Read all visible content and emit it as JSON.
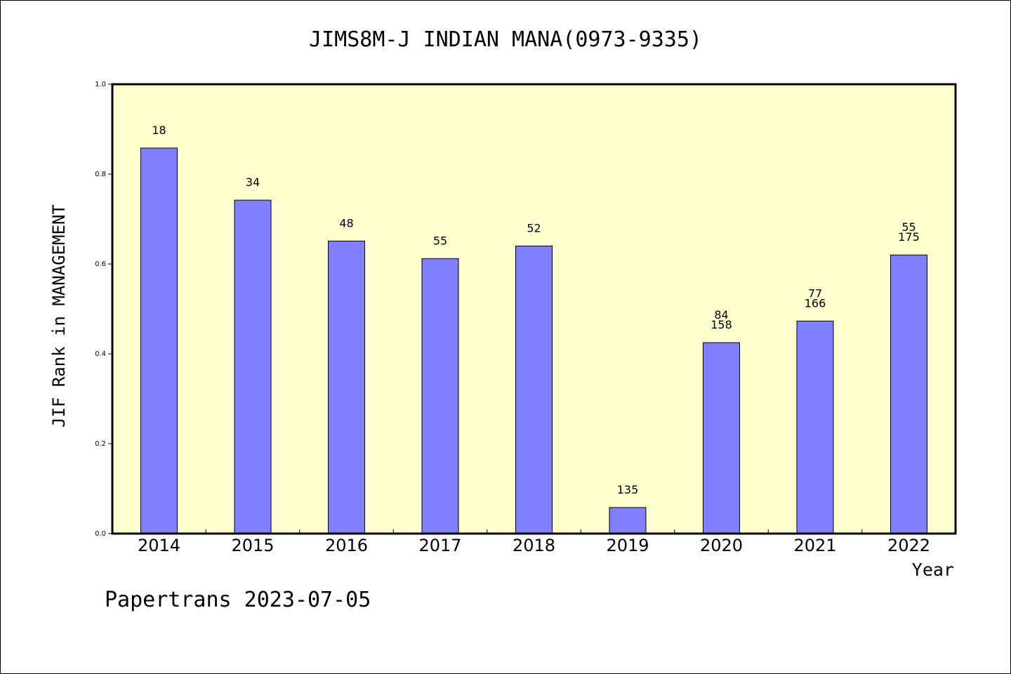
{
  "chart_data": {
    "type": "bar",
    "title": "JIMS8M-J INDIAN MANA(0973-9335)",
    "xlabel": "Year",
    "ylabel": "JIF Rank in MANAGEMENT",
    "categories": [
      "2014",
      "2015",
      "2016",
      "2017",
      "2018",
      "2019",
      "2020",
      "2021",
      "2022"
    ],
    "values": [
      0.858,
      0.742,
      0.651,
      0.612,
      0.64,
      0.058,
      0.425,
      0.473,
      0.62
    ],
    "bar_labels": [
      [
        "18"
      ],
      [
        "34"
      ],
      [
        "48"
      ],
      [
        "55"
      ],
      [
        "52"
      ],
      [
        "135"
      ],
      [
        "84",
        "158"
      ],
      [
        "77",
        "166"
      ],
      [
        "55",
        "175"
      ]
    ],
    "ylim": [
      0,
      1.0
    ],
    "yticks": [
      {
        "value": 0.0,
        "label": "0.0"
      },
      {
        "value": 0.2,
        "label": "0.2"
      },
      {
        "value": 0.4,
        "label": "0.4"
      },
      {
        "value": 0.6,
        "label": "0.6"
      },
      {
        "value": 0.8,
        "label": "0.8"
      },
      {
        "value": 1.0,
        "label": "1.0"
      }
    ],
    "grid": false,
    "legend": "none",
    "colors": {
      "bar_fill": "#8080ff",
      "plot_background": "#ffffd0",
      "axis": "#000000"
    }
  },
  "footer": {
    "credit": "Papertrans 2023-07-05"
  }
}
